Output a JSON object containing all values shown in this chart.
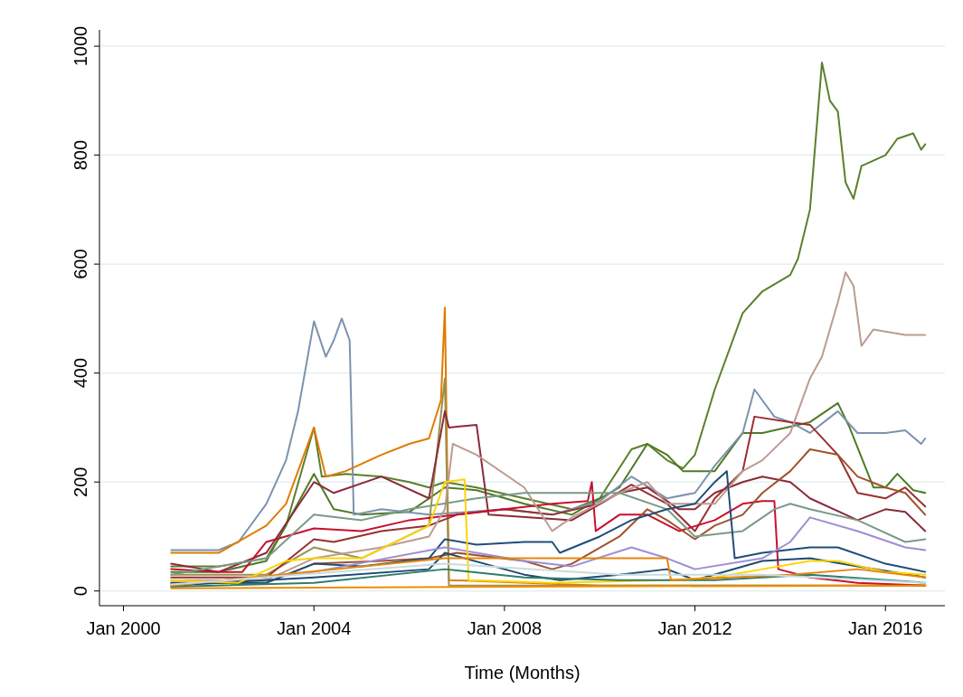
{
  "chart_data": {
    "type": "line",
    "xlabel": "Time (Months)",
    "xlim": [
      "1999-07",
      "2017-04"
    ],
    "xticks": [
      {
        "value": "2000-01",
        "label": "Jan 2000"
      },
      {
        "value": "2004-01",
        "label": "Jan 2004"
      },
      {
        "value": "2008-01",
        "label": "Jan 2008"
      },
      {
        "value": "2012-01",
        "label": "Jan 2012"
      },
      {
        "value": "2016-01",
        "label": "Jan 2016"
      }
    ],
    "ylim": [
      -27,
      1030
    ],
    "yticks": [
      0,
      200,
      400,
      600,
      800,
      1000
    ],
    "grid": "y",
    "line_style": "solid",
    "marker": "none",
    "series": [
      {
        "color": "#5b7f2b",
        "x": [
          "2001-01",
          "2002-01",
          "2003-01",
          "2003-06",
          "2004-01",
          "2004-03",
          "2004-09",
          "2005-06",
          "2006-01",
          "2006-06",
          "2006-10",
          "2007-06",
          "2008-06",
          "2009-06",
          "2010-01",
          "2010-09",
          "2011-01",
          "2011-06",
          "2011-10",
          "2012-01",
          "2012-06",
          "2013-01",
          "2013-06",
          "2014-01",
          "2014-03",
          "2014-06",
          "2014-09",
          "2014-11",
          "2015-01",
          "2015-03",
          "2015-05",
          "2015-07",
          "2015-10",
          "2016-01",
          "2016-04",
          "2016-08",
          "2016-10",
          "2016-11"
        ],
        "values": [
          45,
          45,
          60,
          120,
          300,
          210,
          215,
          210,
          200,
          190,
          200,
          190,
          170,
          150,
          170,
          260,
          270,
          240,
          225,
          250,
          370,
          510,
          550,
          580,
          610,
          700,
          970,
          900,
          880,
          750,
          720,
          780,
          790,
          800,
          830,
          840,
          810,
          820
        ]
      },
      {
        "color": "#4f7a28",
        "x": [
          "2001-01",
          "2002-01",
          "2003-01",
          "2004-01",
          "2004-06",
          "2005-01",
          "2006-01",
          "2006-10",
          "2007-06",
          "2008-06",
          "2009-06",
          "2010-06",
          "2011-01",
          "2011-06",
          "2011-10",
          "2012-06",
          "2013-01",
          "2013-06",
          "2014-06",
          "2015-01",
          "2015-04",
          "2015-10",
          "2016-01",
          "2016-04",
          "2016-08",
          "2016-11"
        ],
        "values": [
          35,
          35,
          55,
          215,
          150,
          140,
          145,
          190,
          185,
          160,
          140,
          190,
          270,
          250,
          220,
          220,
          290,
          290,
          310,
          345,
          300,
          190,
          190,
          215,
          185,
          180
        ]
      },
      {
        "color": "#7b93ad",
        "x": [
          "2001-01",
          "2002-01",
          "2002-06",
          "2003-01",
          "2003-06",
          "2003-09",
          "2004-01",
          "2004-04",
          "2004-06",
          "2004-08",
          "2004-10",
          "2004-11",
          "2005-06",
          "2006-06",
          "2008-01",
          "2009-01",
          "2010-01",
          "2010-09",
          "2011-06",
          "2012-01",
          "2012-06",
          "2013-01",
          "2013-04",
          "2013-09",
          "2014-01",
          "2014-06",
          "2015-01",
          "2015-06",
          "2016-01",
          "2016-06",
          "2016-10",
          "2016-11"
        ],
        "values": [
          75,
          75,
          90,
          160,
          240,
          330,
          495,
          430,
          460,
          500,
          460,
          140,
          150,
          140,
          150,
          140,
          165,
          210,
          170,
          180,
          230,
          290,
          370,
          320,
          310,
          290,
          330,
          290,
          290,
          295,
          270,
          280
        ]
      },
      {
        "color": "#e07b00",
        "x": [
          "2001-01",
          "2002-01",
          "2003-01",
          "2003-06",
          "2004-01",
          "2004-04",
          "2004-09",
          "2005-06",
          "2006-01",
          "2006-06",
          "2006-09",
          "2006-10",
          "2006-11",
          "2010-01",
          "2016-11"
        ],
        "values": [
          70,
          70,
          120,
          160,
          300,
          210,
          220,
          250,
          270,
          280,
          350,
          520,
          20,
          10,
          10
        ]
      },
      {
        "color": "#9a9050",
        "x": [
          "2001-01",
          "2003-01",
          "2004-01",
          "2005-01",
          "2006-06",
          "2006-10",
          "2006-11",
          "2016-11"
        ],
        "values": [
          30,
          30,
          80,
          60,
          120,
          390,
          10,
          10
        ]
      },
      {
        "color": "#8b2a3a",
        "x": [
          "2001-01",
          "2002-01",
          "2003-01",
          "2004-01",
          "2004-06",
          "2005-06",
          "2006-06",
          "2006-10",
          "2006-11",
          "2007-06",
          "2007-09",
          "2009-06",
          "2010-06",
          "2011-01",
          "2011-09",
          "2012-01",
          "2012-06",
          "2013-01",
          "2013-06",
          "2014-01",
          "2014-06",
          "2015-06",
          "2016-01",
          "2016-06",
          "2016-11"
        ],
        "values": [
          50,
          35,
          70,
          200,
          180,
          210,
          170,
          330,
          300,
          305,
          140,
          130,
          180,
          190,
          150,
          150,
          180,
          200,
          210,
          200,
          170,
          130,
          150,
          145,
          110
        ]
      },
      {
        "color": "#983030",
        "x": [
          "2001-01",
          "2003-01",
          "2004-01",
          "2004-06",
          "2005-06",
          "2006-06",
          "2007-01",
          "2008-01",
          "2009-01",
          "2010-01",
          "2010-09",
          "2011-06",
          "2012-01",
          "2012-06",
          "2013-01",
          "2013-04",
          "2014-01",
          "2014-06",
          "2015-01",
          "2015-06",
          "2016-01",
          "2016-06",
          "2016-11"
        ],
        "values": [
          25,
          25,
          95,
          90,
          110,
          120,
          140,
          150,
          140,
          160,
          195,
          160,
          110,
          170,
          220,
          320,
          310,
          305,
          250,
          180,
          170,
          190,
          155
        ]
      },
      {
        "color": "#c8102e",
        "x": [
          "2001-01",
          "2002-01",
          "2002-07",
          "2003-01",
          "2004-01",
          "2005-01",
          "2006-01",
          "2007-01",
          "2008-01",
          "2009-01",
          "2009-10",
          "2009-11",
          "2009-12",
          "2010-06",
          "2011-01",
          "2011-09",
          "2012-06",
          "2013-01",
          "2013-06",
          "2013-09",
          "2013-10",
          "2014-06",
          "2015-06",
          "2016-11"
        ],
        "values": [
          40,
          35,
          35,
          90,
          115,
          110,
          130,
          140,
          150,
          160,
          165,
          200,
          110,
          140,
          140,
          110,
          130,
          160,
          165,
          165,
          40,
          25,
          15,
          10
        ]
      },
      {
        "color": "#bc9b92",
        "x": [
          "2001-01",
          "2003-01",
          "2004-01",
          "2005-06",
          "2006-06",
          "2006-10",
          "2006-12",
          "2007-06",
          "2008-06",
          "2009-01",
          "2009-06",
          "2010-06",
          "2011-01",
          "2011-06",
          "2012-01",
          "2012-06",
          "2013-01",
          "2013-06",
          "2014-01",
          "2014-06",
          "2014-09",
          "2015-01",
          "2015-03",
          "2015-05",
          "2015-07",
          "2015-10",
          "2016-06",
          "2016-11"
        ],
        "values": [
          20,
          20,
          60,
          80,
          100,
          150,
          270,
          250,
          190,
          110,
          135,
          180,
          200,
          160,
          160,
          160,
          220,
          240,
          290,
          390,
          430,
          530,
          585,
          560,
          450,
          480,
          470,
          470
        ]
      },
      {
        "color": "#a0522d",
        "x": [
          "2001-01",
          "2003-01",
          "2004-01",
          "2005-06",
          "2006-06",
          "2007-01",
          "2008-06",
          "2009-01",
          "2009-06",
          "2010-06",
          "2011-01",
          "2011-06",
          "2012-01",
          "2012-06",
          "2013-01",
          "2013-06",
          "2014-01",
          "2014-06",
          "2015-01",
          "2015-06",
          "2016-01",
          "2016-06",
          "2016-11"
        ],
        "values": [
          15,
          15,
          50,
          55,
          60,
          70,
          55,
          40,
          50,
          100,
          150,
          130,
          95,
          120,
          140,
          180,
          220,
          260,
          250,
          210,
          190,
          180,
          140
        ]
      },
      {
        "color": "#7a9a88",
        "x": [
          "2001-01",
          "2003-01",
          "2004-01",
          "2005-01",
          "2006-01",
          "2007-06",
          "2008-06",
          "2009-06",
          "2010-06",
          "2011-06",
          "2012-01",
          "2013-01",
          "2013-09",
          "2014-01",
          "2014-06",
          "2015-06",
          "2016-06",
          "2016-11"
        ],
        "values": [
          30,
          60,
          140,
          130,
          150,
          170,
          180,
          180,
          180,
          150,
          100,
          110,
          150,
          160,
          150,
          130,
          90,
          95
        ]
      },
      {
        "color": "#1f4e79",
        "x": [
          "2001-01",
          "2003-01",
          "2004-01",
          "2005-01",
          "2006-06",
          "2006-10",
          "2007-06",
          "2008-06",
          "2009-01",
          "2009-03",
          "2010-01",
          "2010-09",
          "2011-06",
          "2012-01",
          "2012-06",
          "2012-09",
          "2012-11",
          "2013-06",
          "2014-06",
          "2015-01",
          "2016-01",
          "2016-11"
        ],
        "values": [
          15,
          15,
          50,
          45,
          60,
          95,
          85,
          90,
          90,
          70,
          100,
          130,
          150,
          160,
          200,
          220,
          60,
          70,
          80,
          80,
          50,
          35
        ]
      },
      {
        "color": "#1d4a72",
        "x": [
          "2001-01",
          "2004-01",
          "2006-06",
          "2006-10",
          "2008-06",
          "2009-03",
          "2010-06",
          "2011-06",
          "2012-01",
          "2013-06",
          "2014-06",
          "2015-06",
          "2016-11"
        ],
        "values": [
          10,
          25,
          40,
          70,
          30,
          20,
          30,
          40,
          20,
          55,
          60,
          45,
          25
        ]
      },
      {
        "color": "#9b8fd4",
        "x": [
          "2001-01",
          "2004-01",
          "2006-10",
          "2008-06",
          "2009-06",
          "2010-09",
          "2011-06",
          "2012-01",
          "2013-06",
          "2014-01",
          "2014-06",
          "2015-06",
          "2016-06",
          "2016-11"
        ],
        "values": [
          10,
          35,
          80,
          55,
          45,
          80,
          60,
          40,
          60,
          90,
          135,
          110,
          80,
          75
        ]
      },
      {
        "color": "#ffd400",
        "x": [
          "2001-01",
          "2002-06",
          "2003-06",
          "2004-01",
          "2005-01",
          "2006-06",
          "2006-10",
          "2007-03",
          "2007-04",
          "2009-01",
          "2011-06",
          "2012-06",
          "2013-06",
          "2014-06",
          "2015-01",
          "2016-01",
          "2016-11"
        ],
        "values": [
          20,
          15,
          55,
          60,
          60,
          120,
          200,
          205,
          20,
          15,
          20,
          25,
          40,
          55,
          55,
          35,
          30
        ]
      },
      {
        "color": "#2e7d6b",
        "x": [
          "2001-01",
          "2004-01",
          "2006-10",
          "2008-06",
          "2010-06",
          "2012-06",
          "2014-06",
          "2016-11"
        ],
        "values": [
          8,
          15,
          40,
          25,
          20,
          20,
          30,
          15
        ]
      },
      {
        "color": "#e8850a",
        "x": [
          "2001-01",
          "2006-10",
          "2011-06",
          "2011-07",
          "2014-01",
          "2015-06",
          "2016-11"
        ],
        "values": [
          10,
          60,
          60,
          20,
          30,
          40,
          25
        ]
      },
      {
        "color": "#c8dce0",
        "x": [
          "2001-01",
          "2006-10",
          "2010-06",
          "2013-06",
          "2016-11"
        ],
        "values": [
          12,
          50,
          30,
          30,
          15
        ]
      },
      {
        "color": "#f08c00",
        "x": [
          "2001-01",
          "2008-01",
          "2016-11"
        ],
        "values": [
          5,
          8,
          10
        ]
      }
    ]
  }
}
